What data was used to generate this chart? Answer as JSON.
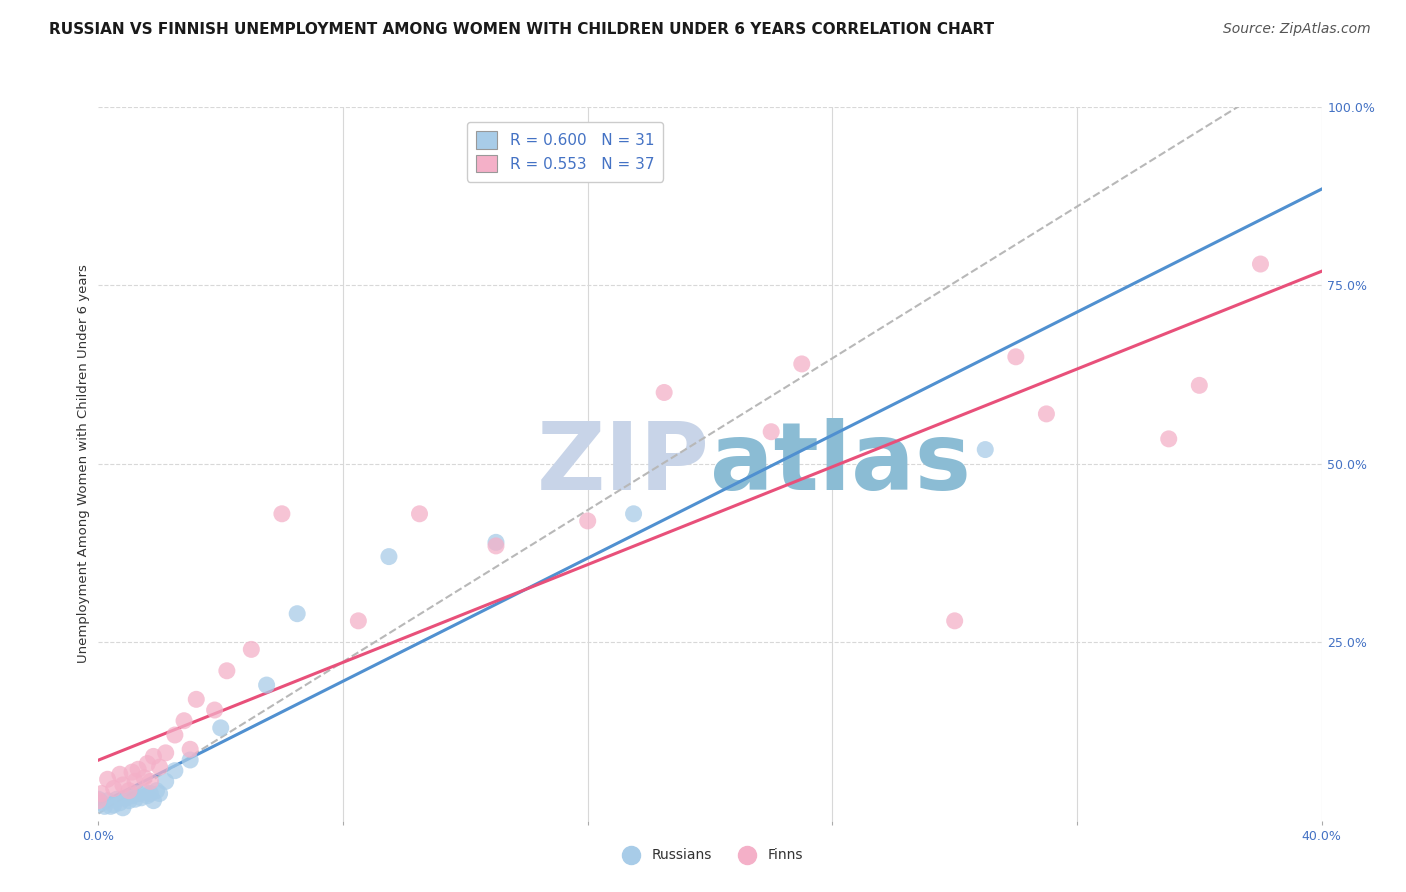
{
  "title": "RUSSIAN VS FINNISH UNEMPLOYMENT AMONG WOMEN WITH CHILDREN UNDER 6 YEARS CORRELATION CHART",
  "source": "Source: ZipAtlas.com",
  "ylabel": "Unemployment Among Women with Children Under 6 years",
  "xlim": [
    0.0,
    0.4
  ],
  "ylim": [
    0.0,
    1.0
  ],
  "legend_r_russian": "R = 0.600",
  "legend_n_russian": "N = 31",
  "legend_r_finnish": "R = 0.553",
  "legend_n_finnish": "N = 37",
  "russian_color": "#a8cce8",
  "finnish_color": "#f4b0c8",
  "russian_line_color": "#5090d0",
  "finnish_line_color": "#e8507a",
  "diagonal_color": "#b8b8b8",
  "watermark_text": "ZIPatlas",
  "watermark_color": "#d0dff0",
  "background_color": "#ffffff",
  "grid_color": "#d8d8d8",
  "tick_color": "#4472c4",
  "title_fontsize": 11,
  "source_fontsize": 10,
  "axis_label_fontsize": 9.5,
  "tick_fontsize": 9,
  "legend_fontsize": 11,
  "russians_x": [
    0.0,
    0.001,
    0.002,
    0.003,
    0.004,
    0.005,
    0.006,
    0.007,
    0.008,
    0.009,
    0.01,
    0.011,
    0.012,
    0.013,
    0.014,
    0.015,
    0.016,
    0.017,
    0.018,
    0.019,
    0.02,
    0.022,
    0.025,
    0.03,
    0.04,
    0.055,
    0.065,
    0.095,
    0.13,
    0.175,
    0.29
  ],
  "russians_y": [
    0.03,
    0.025,
    0.02,
    0.028,
    0.02,
    0.022,
    0.03,
    0.025,
    0.018,
    0.032,
    0.028,
    0.035,
    0.03,
    0.038,
    0.032,
    0.04,
    0.035,
    0.038,
    0.028,
    0.042,
    0.038,
    0.055,
    0.07,
    0.085,
    0.13,
    0.19,
    0.29,
    0.37,
    0.39,
    0.43,
    0.52
  ],
  "finns_x": [
    0.0,
    0.001,
    0.003,
    0.005,
    0.007,
    0.008,
    0.01,
    0.011,
    0.012,
    0.013,
    0.015,
    0.016,
    0.017,
    0.018,
    0.02,
    0.022,
    0.025,
    0.028,
    0.03,
    0.032,
    0.038,
    0.042,
    0.05,
    0.06,
    0.085,
    0.105,
    0.13,
    0.16,
    0.185,
    0.22,
    0.23,
    0.28,
    0.3,
    0.31,
    0.35,
    0.36,
    0.38
  ],
  "finns_y": [
    0.028,
    0.038,
    0.058,
    0.045,
    0.065,
    0.05,
    0.042,
    0.068,
    0.055,
    0.072,
    0.06,
    0.08,
    0.055,
    0.09,
    0.075,
    0.095,
    0.12,
    0.14,
    0.1,
    0.17,
    0.155,
    0.21,
    0.24,
    0.43,
    0.28,
    0.43,
    0.385,
    0.42,
    0.6,
    0.545,
    0.64,
    0.28,
    0.65,
    0.57,
    0.535,
    0.61,
    0.78
  ]
}
